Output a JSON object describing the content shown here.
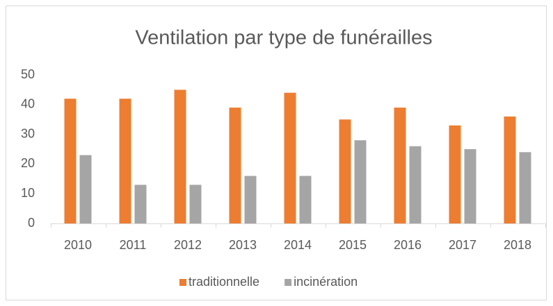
{
  "chart_data": {
    "type": "bar",
    "title": "Ventilation par type de funérailles",
    "categories": [
      "2010",
      "2011",
      "2012",
      "2013",
      "2014",
      "2015",
      "2016",
      "2017",
      "2018"
    ],
    "series": [
      {
        "name": "traditionnelle",
        "color": "#ed7d31",
        "values": [
          42,
          42,
          45,
          39,
          44,
          35,
          39,
          33,
          36
        ]
      },
      {
        "name": "incinération",
        "color": "#a5a5a5",
        "values": [
          23,
          13,
          13,
          16,
          16,
          28,
          26,
          25,
          24
        ]
      }
    ],
    "ylim": [
      0,
      50
    ],
    "yticks": [
      0,
      10,
      20,
      30,
      40,
      50
    ],
    "grid": false,
    "legend": "bottom"
  }
}
